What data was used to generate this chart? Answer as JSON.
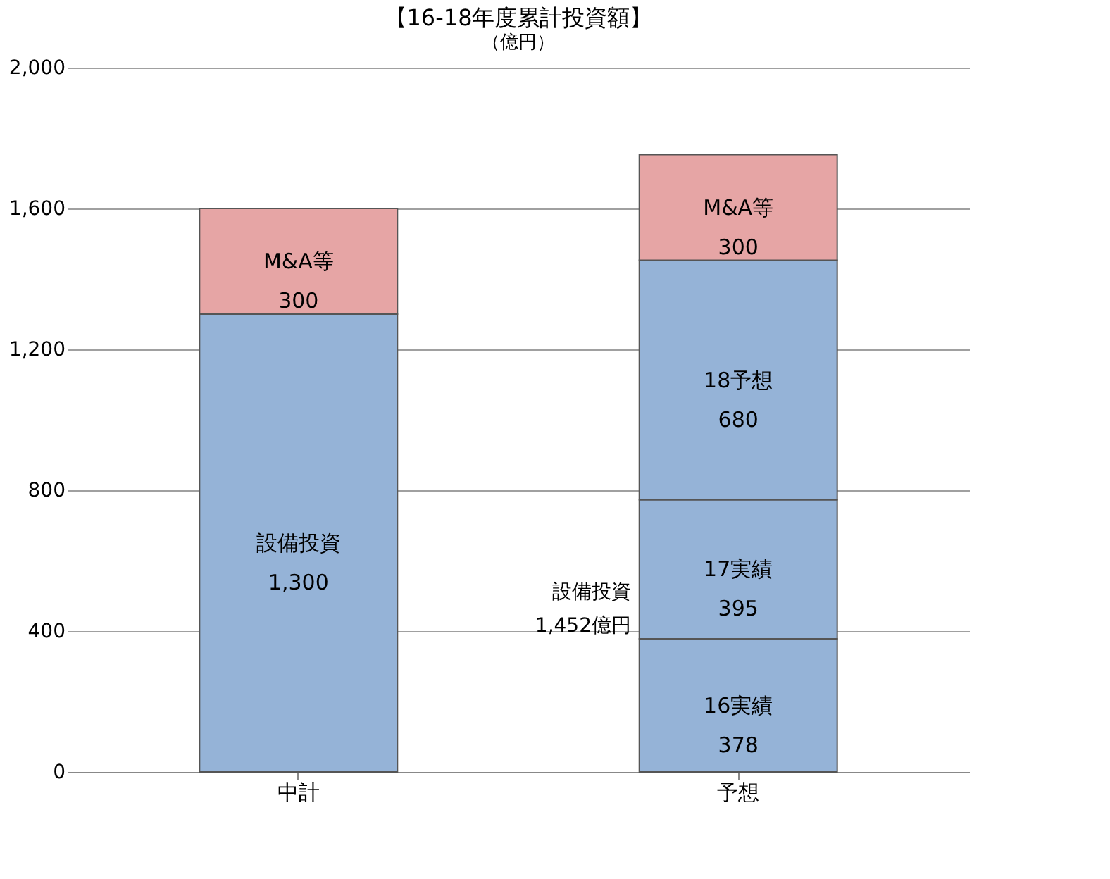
{
  "chart_data": {
    "type": "bar",
    "title": "【16-18年度累計投資額】",
    "ylabel": "（億円）",
    "categories": [
      "中計",
      "予想"
    ],
    "stacked": true,
    "series": [
      {
        "name": "設備投資",
        "color": "#95b3d7",
        "values": [
          1300,
          null
        ],
        "value_labels": [
          "1,300",
          null
        ]
      },
      {
        "name": "16実績",
        "color": "#95b3d7",
        "values": [
          null,
          378
        ],
        "value_labels": [
          null,
          "378"
        ]
      },
      {
        "name": "17実績",
        "color": "#95b3d7",
        "values": [
          null,
          395
        ],
        "value_labels": [
          null,
          "395"
        ]
      },
      {
        "name": "18予想",
        "color": "#95b3d7",
        "values": [
          null,
          680
        ],
        "value_labels": [
          null,
          "680"
        ]
      },
      {
        "name": "M&A等",
        "color": "#e6a5a5",
        "values": [
          300,
          300
        ],
        "value_labels": [
          "300",
          "300"
        ]
      }
    ],
    "annotations": [
      "設備投資\n1,452億円"
    ],
    "ylim": [
      0,
      2000
    ],
    "yticks": [
      0,
      400,
      800,
      {
        "value": 1200,
        "label": "1,200"
      },
      {
        "value": 1600,
        "label": "1,600"
      },
      {
        "value": 2000,
        "label": "2,000"
      }
    ],
    "grid": "y"
  }
}
